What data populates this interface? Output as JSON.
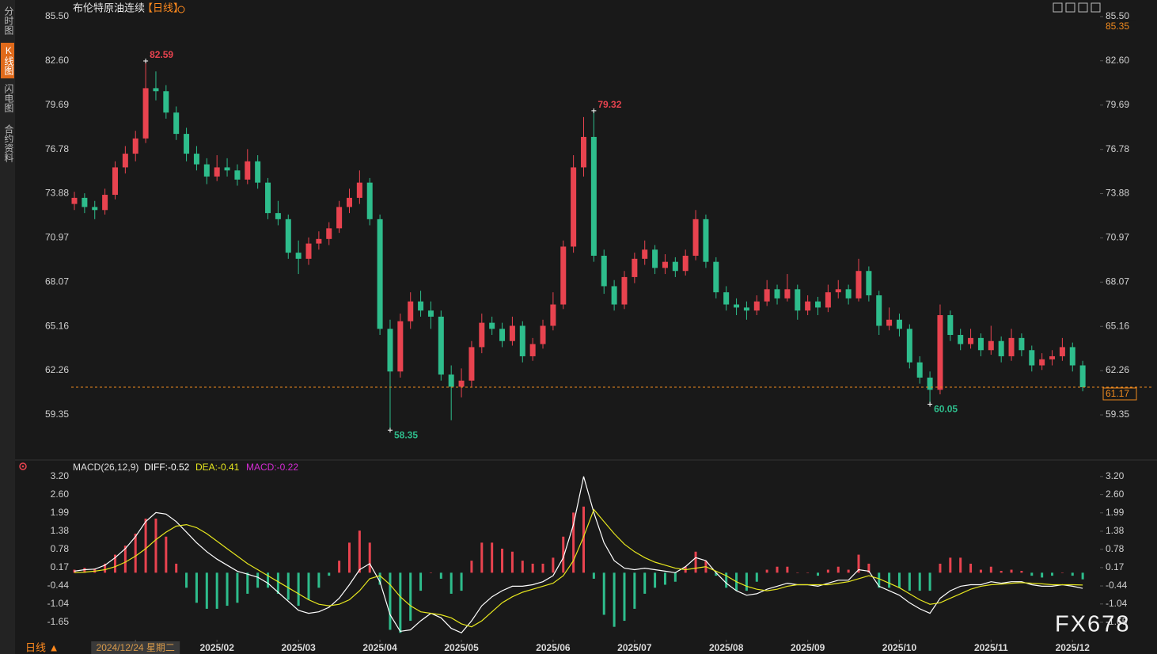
{
  "tabs": [
    "分时图",
    "K线图",
    "闪电图",
    "合约资料"
  ],
  "period_selector": "日线 ▲",
  "watermark": "FX678",
  "chart_data": [
    {
      "type": "candlestick",
      "title": "布伦特原油连续",
      "subtitle": "【日线】",
      "up_color": "#e8434f",
      "down_color": "#2ebd8c",
      "grid": false,
      "ylim": [
        56.7,
        86.33
      ],
      "yticks": [
        {
          "value": 85.5,
          "label": "85.50"
        },
        {
          "value": 82.6,
          "label": "82.60"
        },
        79.69,
        76.78,
        73.88,
        70.97,
        68.07,
        65.16,
        62.26,
        59.35
      ],
      "xlabels": [
        {
          "value": 6,
          "label": "2024/12/24 星期二"
        },
        {
          "value": 14,
          "label": "2025/02"
        },
        {
          "value": 22,
          "label": "2025/03"
        },
        {
          "value": 30,
          "label": "2025/04"
        },
        {
          "value": 38,
          "label": "2025/05"
        },
        {
          "value": 47,
          "label": "2025/06"
        },
        {
          "value": 55,
          "label": "2025/07"
        },
        {
          "value": 64,
          "label": "2025/08"
        },
        {
          "value": 72,
          "label": "2025/09"
        },
        {
          "value": 81,
          "label": "2025/10"
        },
        {
          "value": 90,
          "label": "2025/11"
        },
        {
          "value": 98,
          "label": "2025/12"
        }
      ],
      "candles": [
        [
          73.2,
          74.0,
          72.8,
          73.6
        ],
        [
          73.6,
          73.9,
          72.6,
          73.0
        ],
        [
          73.0,
          73.4,
          72.2,
          72.8
        ],
        [
          72.8,
          74.2,
          72.5,
          73.8
        ],
        [
          73.8,
          76.0,
          73.5,
          75.6
        ],
        [
          75.6,
          77.0,
          75.2,
          76.5
        ],
        [
          76.5,
          78.0,
          76.0,
          77.5
        ],
        [
          77.5,
          82.59,
          77.2,
          80.8
        ],
        [
          80.8,
          81.9,
          80.0,
          80.6
        ],
        [
          80.6,
          81.0,
          78.8,
          79.2
        ],
        [
          79.2,
          79.6,
          77.4,
          77.8
        ],
        [
          77.8,
          78.2,
          76.0,
          76.5
        ],
        [
          76.5,
          77.0,
          75.4,
          75.8
        ],
        [
          75.8,
          76.2,
          74.5,
          75.0
        ],
        [
          75.0,
          76.4,
          74.7,
          75.6
        ],
        [
          75.6,
          76.2,
          75.0,
          75.4
        ],
        [
          75.4,
          75.8,
          74.4,
          74.8
        ],
        [
          74.8,
          76.8,
          74.5,
          76.0
        ],
        [
          76.0,
          76.4,
          74.2,
          74.6
        ],
        [
          74.6,
          74.9,
          72.2,
          72.6
        ],
        [
          72.6,
          73.4,
          71.8,
          72.2
        ],
        [
          72.2,
          72.5,
          69.6,
          70.0
        ],
        [
          70.0,
          70.8,
          68.6,
          69.6
        ],
        [
          69.6,
          71.0,
          69.2,
          70.6
        ],
        [
          70.6,
          71.4,
          70.2,
          70.9
        ],
        [
          70.9,
          72.0,
          70.5,
          71.6
        ],
        [
          71.6,
          73.4,
          71.3,
          73.0
        ],
        [
          73.0,
          74.2,
          72.6,
          73.6
        ],
        [
          73.6,
          75.4,
          73.2,
          74.6
        ],
        [
          74.6,
          74.9,
          71.8,
          72.2
        ],
        [
          72.2,
          72.5,
          64.6,
          65.0
        ],
        [
          65.0,
          65.6,
          58.35,
          62.2
        ],
        [
          62.2,
          66.0,
          61.8,
          65.5
        ],
        [
          65.5,
          67.4,
          65.0,
          66.8
        ],
        [
          66.8,
          67.5,
          65.8,
          66.2
        ],
        [
          66.2,
          66.8,
          65.0,
          65.8
        ],
        [
          65.8,
          66.2,
          61.6,
          62.0
        ],
        [
          62.0,
          62.6,
          59.0,
          61.2
        ],
        [
          61.2,
          62.4,
          60.5,
          61.6
        ],
        [
          61.6,
          64.2,
          61.2,
          63.8
        ],
        [
          63.8,
          66.0,
          63.4,
          65.4
        ],
        [
          65.4,
          65.8,
          64.6,
          65.0
        ],
        [
          65.0,
          65.4,
          63.8,
          64.2
        ],
        [
          64.2,
          65.8,
          63.9,
          65.2
        ],
        [
          65.2,
          65.5,
          62.8,
          63.2
        ],
        [
          63.2,
          64.4,
          62.9,
          64.0
        ],
        [
          64.0,
          65.6,
          63.7,
          65.2
        ],
        [
          65.2,
          67.4,
          64.9,
          66.6
        ],
        [
          66.6,
          70.8,
          66.3,
          70.4
        ],
        [
          70.4,
          76.4,
          70.0,
          75.6
        ],
        [
          75.6,
          78.9,
          75.0,
          77.6
        ],
        [
          77.6,
          79.32,
          69.4,
          69.8
        ],
        [
          69.8,
          70.2,
          67.3,
          67.8
        ],
        [
          67.8,
          68.2,
          66.2,
          66.6
        ],
        [
          66.6,
          68.8,
          66.3,
          68.4
        ],
        [
          68.4,
          70.0,
          68.0,
          69.6
        ],
        [
          69.6,
          70.8,
          69.2,
          70.2
        ],
        [
          70.2,
          70.5,
          68.6,
          69.0
        ],
        [
          69.0,
          69.9,
          68.6,
          69.4
        ],
        [
          69.4,
          69.7,
          68.4,
          68.8
        ],
        [
          68.8,
          70.2,
          68.5,
          69.8
        ],
        [
          69.8,
          72.8,
          69.5,
          72.2
        ],
        [
          72.2,
          72.5,
          69.0,
          69.4
        ],
        [
          69.4,
          69.7,
          67.0,
          67.4
        ],
        [
          67.4,
          67.8,
          66.2,
          66.6
        ],
        [
          66.6,
          67.0,
          65.9,
          66.4
        ],
        [
          66.4,
          66.8,
          65.6,
          66.2
        ],
        [
          66.2,
          67.2,
          65.9,
          66.8
        ],
        [
          66.8,
          68.2,
          66.5,
          67.6
        ],
        [
          67.6,
          67.9,
          66.6,
          67.0
        ],
        [
          67.0,
          68.6,
          66.8,
          67.6
        ],
        [
          67.6,
          67.9,
          65.6,
          66.2
        ],
        [
          66.2,
          67.2,
          65.9,
          66.8
        ],
        [
          66.8,
          67.1,
          65.9,
          66.4
        ],
        [
          66.4,
          67.9,
          66.1,
          67.4
        ],
        [
          67.4,
          68.2,
          67.0,
          67.6
        ],
        [
          67.6,
          67.9,
          66.6,
          67.0
        ],
        [
          67.0,
          69.6,
          66.8,
          68.8
        ],
        [
          68.8,
          69.1,
          66.8,
          67.2
        ],
        [
          67.2,
          67.5,
          64.6,
          65.2
        ],
        [
          65.2,
          66.4,
          64.9,
          65.6
        ],
        [
          65.6,
          66.0,
          64.5,
          65.0
        ],
        [
          65.0,
          65.3,
          62.4,
          62.8
        ],
        [
          62.8,
          63.2,
          61.4,
          61.8
        ],
        [
          61.8,
          62.2,
          60.05,
          61.0
        ],
        [
          61.0,
          66.6,
          60.7,
          65.9
        ],
        [
          65.9,
          66.2,
          64.2,
          64.6
        ],
        [
          64.6,
          65.0,
          63.6,
          64.0
        ],
        [
          64.0,
          65.0,
          63.7,
          64.4
        ],
        [
          64.4,
          64.7,
          63.2,
          63.6
        ],
        [
          63.6,
          65.2,
          63.3,
          64.2
        ],
        [
          64.2,
          64.5,
          62.8,
          63.2
        ],
        [
          63.2,
          65.0,
          62.9,
          64.4
        ],
        [
          64.4,
          64.7,
          63.2,
          63.6
        ],
        [
          63.6,
          63.9,
          62.2,
          62.6
        ],
        [
          62.6,
          63.4,
          62.3,
          63.0
        ],
        [
          63.0,
          63.6,
          62.6,
          63.2
        ],
        [
          63.2,
          64.4,
          62.9,
          63.8
        ],
        [
          63.8,
          64.1,
          62.2,
          62.6
        ],
        [
          62.6,
          62.9,
          60.9,
          61.17
        ]
      ],
      "annotations": [
        {
          "index": 7,
          "value": 82.59,
          "color": "#e8434f"
        },
        {
          "index": 51,
          "value": 79.32,
          "color": "#e8434f"
        },
        {
          "index": 31,
          "value": 58.35,
          "color": "#2ebd8c"
        },
        {
          "index": 84,
          "value": 60.05,
          "color": "#2ebd8c"
        }
      ],
      "last_price": 61.17,
      "cursor_price": 85.35
    },
    {
      "type": "macd",
      "title": "MACD(26,12,9)",
      "up_color": "#e8434f",
      "down_color": "#2ebd8c",
      "ylim": [
        -2.23,
        3.38
      ],
      "yticks": [
        {
          "value": 3.2,
          "label": "3.20"
        },
        {
          "value": 2.6,
          "label": "2.60"
        },
        1.99,
        1.38,
        0.78,
        0.17,
        -0.44,
        -1.04,
        -1.65
      ],
      "series": [
        {
          "name": "DIFF:-0.52",
          "color": "#ffffff",
          "style": "line",
          "values": [
            0.05,
            0.1,
            0.12,
            0.25,
            0.5,
            0.8,
            1.2,
            1.7,
            2.0,
            1.95,
            1.7,
            1.35,
            1.0,
            0.7,
            0.45,
            0.25,
            0.05,
            -0.05,
            -0.15,
            -0.35,
            -0.65,
            -0.95,
            -1.25,
            -1.35,
            -1.3,
            -1.15,
            -0.85,
            -0.4,
            0.1,
            0.3,
            -0.3,
            -1.4,
            -1.95,
            -1.9,
            -1.6,
            -1.35,
            -1.5,
            -1.85,
            -2.0,
            -1.6,
            -1.1,
            -0.8,
            -0.6,
            -0.45,
            -0.45,
            -0.4,
            -0.3,
            -0.1,
            0.5,
            1.6,
            3.2,
            2.0,
            1.0,
            0.4,
            0.15,
            0.1,
            0.15,
            0.1,
            0.05,
            0.0,
            0.2,
            0.5,
            0.4,
            0.0,
            -0.35,
            -0.6,
            -0.75,
            -0.7,
            -0.55,
            -0.45,
            -0.35,
            -0.4,
            -0.4,
            -0.45,
            -0.35,
            -0.25,
            -0.25,
            0.1,
            0.05,
            -0.45,
            -0.6,
            -0.75,
            -1.0,
            -1.2,
            -1.35,
            -0.85,
            -0.6,
            -0.45,
            -0.4,
            -0.4,
            -0.3,
            -0.35,
            -0.3,
            -0.3,
            -0.4,
            -0.45,
            -0.45,
            -0.4,
            -0.45,
            -0.52
          ]
        },
        {
          "name": "DEA:-0.41",
          "color": "#e6e61e",
          "style": "line",
          "values": [
            0.0,
            0.02,
            0.05,
            0.1,
            0.2,
            0.35,
            0.55,
            0.8,
            1.1,
            1.35,
            1.55,
            1.6,
            1.5,
            1.3,
            1.05,
            0.8,
            0.55,
            0.3,
            0.1,
            -0.1,
            -0.3,
            -0.5,
            -0.7,
            -0.9,
            -1.05,
            -1.1,
            -1.05,
            -0.9,
            -0.6,
            -0.2,
            -0.1,
            -0.4,
            -0.8,
            -1.1,
            -1.3,
            -1.35,
            -1.4,
            -1.5,
            -1.7,
            -1.8,
            -1.6,
            -1.3,
            -1.0,
            -0.8,
            -0.65,
            -0.55,
            -0.45,
            -0.35,
            -0.1,
            0.4,
            1.2,
            2.1,
            1.7,
            1.3,
            0.95,
            0.7,
            0.5,
            0.35,
            0.25,
            0.15,
            0.1,
            0.15,
            0.2,
            0.05,
            -0.1,
            -0.3,
            -0.45,
            -0.55,
            -0.6,
            -0.55,
            -0.45,
            -0.4,
            -0.4,
            -0.4,
            -0.4,
            -0.35,
            -0.3,
            -0.2,
            -0.1,
            -0.2,
            -0.35,
            -0.5,
            -0.7,
            -0.9,
            -1.05,
            -1.0,
            -0.85,
            -0.7,
            -0.55,
            -0.45,
            -0.4,
            -0.38,
            -0.35,
            -0.33,
            -0.35,
            -0.37,
            -0.4,
            -0.4,
            -0.4,
            -0.41
          ]
        },
        {
          "name": "MACD:-0.22",
          "color": "#d42bd4",
          "style": "bar",
          "values": [
            0.1,
            0.16,
            0.14,
            0.3,
            0.6,
            0.9,
            1.3,
            1.8,
            1.8,
            1.2,
            0.3,
            -0.5,
            -1.0,
            -1.2,
            -1.2,
            -1.1,
            -1.0,
            -0.7,
            -0.5,
            -0.5,
            -0.7,
            -0.9,
            -1.1,
            -0.9,
            -0.5,
            -0.1,
            0.4,
            1.0,
            1.4,
            1.0,
            -0.4,
            -1.9,
            -2.0,
            -1.6,
            -0.6,
            0.0,
            -0.2,
            -0.7,
            -0.6,
            0.4,
            1.0,
            1.0,
            0.8,
            0.7,
            0.4,
            0.3,
            0.3,
            0.5,
            1.2,
            2.0,
            2.2,
            -0.2,
            -1.4,
            -1.8,
            -1.6,
            -1.2,
            -0.7,
            -0.5,
            -0.4,
            -0.3,
            0.2,
            0.7,
            0.4,
            -0.1,
            -0.5,
            -0.6,
            -0.6,
            -0.3,
            0.1,
            0.2,
            0.2,
            0.0,
            0.0,
            -0.1,
            0.1,
            0.2,
            0.1,
            0.6,
            0.3,
            -0.5,
            -0.5,
            -0.5,
            -0.6,
            -0.6,
            -0.6,
            0.3,
            0.5,
            0.5,
            0.3,
            0.1,
            0.2,
            0.06,
            0.1,
            0.06,
            -0.1,
            -0.16,
            -0.1,
            0.0,
            -0.1,
            -0.22
          ]
        }
      ]
    }
  ]
}
